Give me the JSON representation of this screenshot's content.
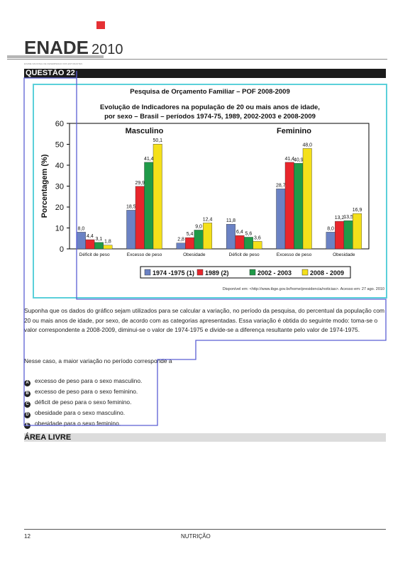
{
  "header": {
    "logo_word": "ENADE",
    "logo_year": "2010",
    "logo_subtitle": "EXAME NACIONAL DE DESEMPENHO DOS ESTUDANTES"
  },
  "question": {
    "label": "QUESTÃO 22"
  },
  "chart_data": {
    "type": "bar",
    "title": "Pesquisa de Orçamento Familiar – POF 2008-2009",
    "subtitle_line1": "Evolução de Indicadores na população de 20 ou mais anos de idade,",
    "subtitle_line2": "por sexo – Brasil – períodos 1974-75, 1989, 2002-2003 e 2008-2009",
    "ylabel": "Porcentagem (%)",
    "xlabel": "",
    "ylim": [
      0,
      60
    ],
    "yticks": [
      "0",
      "10",
      "20",
      "30",
      "40",
      "50",
      "60"
    ],
    "groups": [
      "Masculino",
      "Feminino"
    ],
    "categories": [
      "Déficit de peso",
      "Excesso de peso",
      "Obesidade",
      "Déficit de peso",
      "Excesso de peso",
      "Obesidade"
    ],
    "series": [
      {
        "name": "1974 -1975 (1)",
        "color": "#6b82c4",
        "values": [
          8.0,
          18.5,
          2.8,
          11.8,
          28.7,
          8.0
        ],
        "labels": [
          "8,0",
          "18,5",
          "2,8",
          "11,8",
          "28,7",
          "8,0"
        ]
      },
      {
        "name": "1989 (2)",
        "color": "#e8262c",
        "values": [
          4.4,
          29.9,
          5.4,
          6.4,
          41.4,
          13.2
        ],
        "labels": [
          "4,4",
          "29,9",
          "5,4",
          "6,4",
          "41,4",
          "13,2"
        ]
      },
      {
        "name": "2002 - 2003",
        "color": "#1f9a48",
        "values": [
          3.1,
          41.4,
          9.0,
          5.6,
          40.9,
          13.5
        ],
        "labels": [
          "3,1",
          "41,4",
          "9,0",
          "5,6",
          "40,9",
          "13,5"
        ]
      },
      {
        "name": "2008 - 2009",
        "color": "#f4e01a",
        "values": [
          1.8,
          50.1,
          12.4,
          3.6,
          48.0,
          16.9
        ],
        "labels": [
          "1,8",
          "50,1",
          "12,4",
          "3,6",
          "48,0",
          "16,9"
        ]
      }
    ],
    "legend_position": "bottom",
    "grid": false,
    "source": "Disponível em: <http://www.ibge.gov.br/home/presidencia/noticias>. Acesso em: 27 ago. 2010"
  },
  "body": {
    "paragraph1": "Suponha que os dados do gráfico sejam utilizados para se calcular a variação, no período da pesquisa, do percentual da população com 20 ou mais anos de idade, por sexo, de acordo com as categorias apresentadas. Essa variação é obtida do seguinte modo: toma-se o valor correspondente a 2008-2009, diminui-se o valor de 1974-1975 e divide-se a diferença resultante pelo valor de 1974-1975.",
    "paragraph2": "Nesse caso, a maior variação no período corresponde a",
    "options": [
      {
        "letter": "A",
        "text": "excesso de peso para o sexo masculino."
      },
      {
        "letter": "B",
        "text": "excesso de peso para o sexo feminino."
      },
      {
        "letter": "C",
        "text": "déficit de peso para o sexo feminino."
      },
      {
        "letter": "D",
        "text": "obesidade para o sexo masculino."
      },
      {
        "letter": "E",
        "text": "obesidade para o sexo feminino."
      }
    ]
  },
  "area_livre": {
    "label": "ÁREA LIVRE"
  },
  "footer": {
    "page_number": "12",
    "course": "NUTRIÇÃO"
  },
  "colors": {
    "overlay_stroke": "#5a5fd4",
    "chart_border": "#5bd0da",
    "brand_red": "#e53034"
  }
}
